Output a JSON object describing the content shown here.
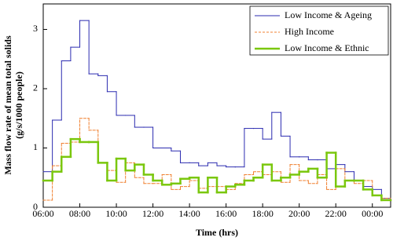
{
  "chart_data": {
    "type": "step",
    "xlabel": "Time (hrs)",
    "ylabel": [
      "Mass flow rate of mean total solids",
      "(g/s/1000 people)"
    ],
    "x": [
      6,
      6.5,
      7,
      7.5,
      8,
      8.5,
      9,
      9.5,
      10,
      10.5,
      11,
      11.5,
      12,
      12.5,
      13,
      13.5,
      14,
      14.5,
      15,
      15.5,
      16,
      16.5,
      17,
      17.5,
      18,
      18.5,
      19,
      19.5,
      20,
      20.5,
      21,
      21.5,
      22,
      22.5,
      23,
      23.5,
      24,
      24.5
    ],
    "series": [
      {
        "name": "Low Income & Ageing",
        "color": "#2b2bb0",
        "width": 1,
        "dash": false,
        "values": [
          0.6,
          1.47,
          2.47,
          2.7,
          3.15,
          2.25,
          2.22,
          1.95,
          1.55,
          1.55,
          1.35,
          1.35,
          1.0,
          1.0,
          0.95,
          0.75,
          0.75,
          0.7,
          0.75,
          0.7,
          0.68,
          0.68,
          1.33,
          1.33,
          1.15,
          1.6,
          1.2,
          0.85,
          0.85,
          0.8,
          0.8,
          0.65,
          0.72,
          0.6,
          0.45,
          0.35,
          0.3,
          0.15
        ]
      },
      {
        "name": "High Income",
        "color": "#f08030",
        "width": 1,
        "dash": true,
        "values": [
          0.12,
          0.7,
          1.08,
          1.1,
          1.5,
          1.3,
          0.75,
          0.62,
          0.42,
          0.75,
          0.5,
          0.4,
          0.4,
          0.55,
          0.3,
          0.35,
          0.45,
          0.32,
          0.35,
          0.35,
          0.3,
          0.4,
          0.55,
          0.6,
          0.55,
          0.6,
          0.42,
          0.72,
          0.45,
          0.4,
          0.55,
          0.3,
          0.65,
          0.45,
          0.4,
          0.45,
          0.2,
          0.15
        ]
      },
      {
        "name": "Low Income & Ethnic",
        "color": "#7ac70d",
        "width": 2.5,
        "dash": false,
        "values": [
          0.45,
          0.6,
          0.85,
          1.15,
          1.1,
          1.1,
          0.75,
          0.45,
          0.82,
          0.62,
          0.72,
          0.55,
          0.45,
          0.38,
          0.4,
          0.48,
          0.5,
          0.25,
          0.5,
          0.25,
          0.35,
          0.38,
          0.45,
          0.5,
          0.72,
          0.45,
          0.5,
          0.55,
          0.6,
          0.65,
          0.5,
          0.92,
          0.35,
          0.45,
          0.45,
          0.3,
          0.2,
          0.12
        ]
      }
    ],
    "xlim": [
      6,
      25
    ],
    "ylim": [
      0,
      3.43
    ],
    "xticks": [
      {
        "value": 6,
        "label": "06:00"
      },
      {
        "value": 8,
        "label": "08:00"
      },
      {
        "value": 10,
        "label": "10:00"
      },
      {
        "value": 12,
        "label": "12:00"
      },
      {
        "value": 14,
        "label": "14:00"
      },
      {
        "value": 16,
        "label": "16:00"
      },
      {
        "value": 18,
        "label": "18:00"
      },
      {
        "value": 20,
        "label": "20:00"
      },
      {
        "value": 22,
        "label": "22:00"
      },
      {
        "value": 24,
        "label": "00:00"
      }
    ],
    "yticks": [
      0,
      1,
      2,
      3
    ],
    "legend": "upper-right"
  }
}
